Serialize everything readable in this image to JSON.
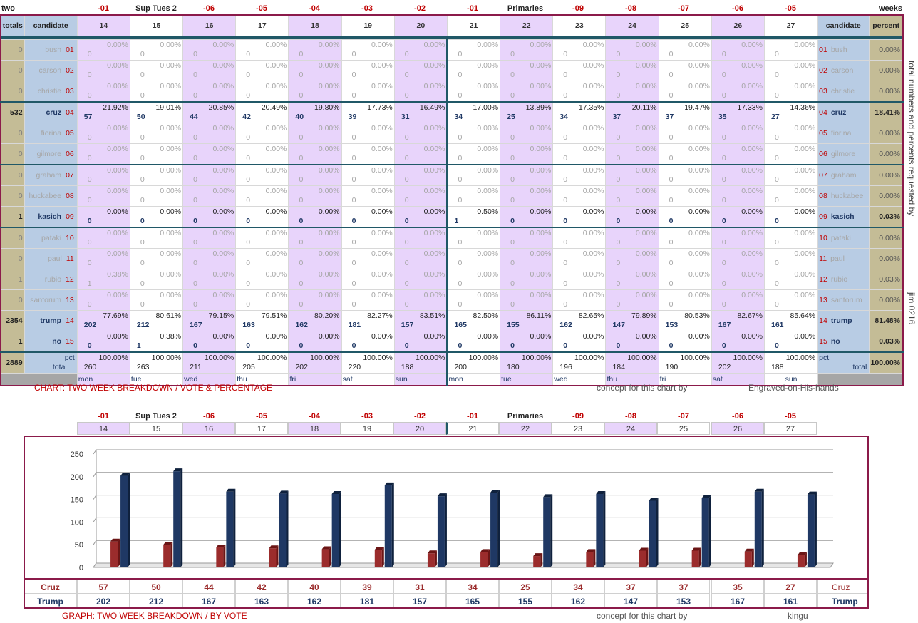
{
  "top": {
    "corner_left": "two",
    "corner_right": "weeks",
    "row_labels_top": [
      "-01",
      "Sup Tues 2",
      "-06",
      "-05",
      "-04",
      "-03",
      "-02",
      "-01",
      "Primaries",
      "-09",
      "-08",
      "-07",
      "-06",
      "-05"
    ],
    "header": {
      "totals": "totals",
      "candidate": "candidate",
      "percent": "percent"
    },
    "days": [
      "14",
      "15",
      "16",
      "17",
      "18",
      "19",
      "20",
      "21",
      "22",
      "23",
      "24",
      "25",
      "26",
      "27"
    ],
    "weekdays": [
      "mon",
      "tue",
      "wed",
      "thu",
      "fri",
      "sat",
      "sun",
      "mon",
      "tue",
      "wed",
      "thu",
      "fri",
      "sat",
      "sun"
    ],
    "candidates": [
      {
        "name": "bush",
        "num": "01",
        "total": "0",
        "percent": "0.00%",
        "active": false,
        "vals": [
          "0",
          "0",
          "0",
          "0",
          "0",
          "0",
          "0",
          "0",
          "0",
          "0",
          "0",
          "0",
          "0",
          "0"
        ],
        "pcts": [
          "0.00%",
          "0.00%",
          "0.00%",
          "0.00%",
          "0.00%",
          "0.00%",
          "0.00%",
          "0.00%",
          "0.00%",
          "0.00%",
          "0.00%",
          "0.00%",
          "0.00%",
          "0.00%"
        ]
      },
      {
        "name": "carson",
        "num": "02",
        "total": "0",
        "percent": "0.00%",
        "active": false,
        "vals": [
          "0",
          "0",
          "0",
          "0",
          "0",
          "0",
          "0",
          "0",
          "0",
          "0",
          "0",
          "0",
          "0",
          "0"
        ],
        "pcts": [
          "0.00%",
          "0.00%",
          "0.00%",
          "0.00%",
          "0.00%",
          "0.00%",
          "0.00%",
          "0.00%",
          "0.00%",
          "0.00%",
          "0.00%",
          "0.00%",
          "0.00%",
          "0.00%"
        ]
      },
      {
        "name": "christie",
        "num": "03",
        "total": "0",
        "percent": "0.00%",
        "active": false,
        "vals": [
          "0",
          "0",
          "0",
          "0",
          "0",
          "0",
          "0",
          "0",
          "0",
          "0",
          "0",
          "0",
          "0",
          "0"
        ],
        "pcts": [
          "0.00%",
          "0.00%",
          "0.00%",
          "0.00%",
          "0.00%",
          "0.00%",
          "0.00%",
          "0.00%",
          "0.00%",
          "0.00%",
          "0.00%",
          "0.00%",
          "0.00%",
          "0.00%"
        ]
      },
      {
        "name": "cruz",
        "num": "04",
        "total": "532",
        "percent": "18.41%",
        "active": true,
        "vals": [
          "57",
          "50",
          "44",
          "42",
          "40",
          "39",
          "31",
          "34",
          "25",
          "34",
          "37",
          "37",
          "35",
          "27"
        ],
        "pcts": [
          "21.92%",
          "19.01%",
          "20.85%",
          "20.49%",
          "19.80%",
          "17.73%",
          "16.49%",
          "17.00%",
          "13.89%",
          "17.35%",
          "20.11%",
          "19.47%",
          "17.33%",
          "14.36%"
        ]
      },
      {
        "name": "fiorina",
        "num": "05",
        "total": "0",
        "percent": "0.00%",
        "active": false,
        "vals": [
          "0",
          "0",
          "0",
          "0",
          "0",
          "0",
          "0",
          "0",
          "0",
          "0",
          "0",
          "0",
          "0",
          "0"
        ],
        "pcts": [
          "0.00%",
          "0.00%",
          "0.00%",
          "0.00%",
          "0.00%",
          "0.00%",
          "0.00%",
          "0.00%",
          "0.00%",
          "0.00%",
          "0.00%",
          "0.00%",
          "0.00%",
          "0.00%"
        ]
      },
      {
        "name": "gilmore",
        "num": "06",
        "total": "0",
        "percent": "0.00%",
        "active": false,
        "vals": [
          "0",
          "0",
          "0",
          "0",
          "0",
          "0",
          "0",
          "0",
          "0",
          "0",
          "0",
          "0",
          "0",
          "0"
        ],
        "pcts": [
          "0.00%",
          "0.00%",
          "0.00%",
          "0.00%",
          "0.00%",
          "0.00%",
          "0.00%",
          "0.00%",
          "0.00%",
          "0.00%",
          "0.00%",
          "0.00%",
          "0.00%",
          "0.00%"
        ]
      },
      {
        "name": "graham",
        "num": "07",
        "total": "0",
        "percent": "0.00%",
        "active": false,
        "vals": [
          "0",
          "0",
          "0",
          "0",
          "0",
          "0",
          "0",
          "0",
          "0",
          "0",
          "0",
          "0",
          "0",
          "0"
        ],
        "pcts": [
          "0.00%",
          "0.00%",
          "0.00%",
          "0.00%",
          "0.00%",
          "0.00%",
          "0.00%",
          "0.00%",
          "0.00%",
          "0.00%",
          "0.00%",
          "0.00%",
          "0.00%",
          "0.00%"
        ]
      },
      {
        "name": "huckabee",
        "num": "08",
        "total": "0",
        "percent": "0.00%",
        "active": false,
        "vals": [
          "0",
          "0",
          "0",
          "0",
          "0",
          "0",
          "0",
          "0",
          "0",
          "0",
          "0",
          "0",
          "0",
          "0"
        ],
        "pcts": [
          "0.00%",
          "0.00%",
          "0.00%",
          "0.00%",
          "0.00%",
          "0.00%",
          "0.00%",
          "0.00%",
          "0.00%",
          "0.00%",
          "0.00%",
          "0.00%",
          "0.00%",
          "0.00%"
        ]
      },
      {
        "name": "kasich",
        "num": "09",
        "total": "1",
        "percent": "0.03%",
        "active": true,
        "vals": [
          "0",
          "0",
          "0",
          "0",
          "0",
          "0",
          "0",
          "1",
          "0",
          "0",
          "0",
          "0",
          "0",
          "0"
        ],
        "pcts": [
          "0.00%",
          "0.00%",
          "0.00%",
          "0.00%",
          "0.00%",
          "0.00%",
          "0.00%",
          "0.50%",
          "0.00%",
          "0.00%",
          "0.00%",
          "0.00%",
          "0.00%",
          "0.00%"
        ]
      },
      {
        "name": "pataki",
        "num": "10",
        "total": "0",
        "percent": "0.00%",
        "active": false,
        "vals": [
          "0",
          "0",
          "0",
          "0",
          "0",
          "0",
          "0",
          "0",
          "0",
          "0",
          "0",
          "0",
          "0",
          "0"
        ],
        "pcts": [
          "0.00%",
          "0.00%",
          "0.00%",
          "0.00%",
          "0.00%",
          "0.00%",
          "0.00%",
          "0.00%",
          "0.00%",
          "0.00%",
          "0.00%",
          "0.00%",
          "0.00%",
          "0.00%"
        ]
      },
      {
        "name": "paul",
        "num": "11",
        "total": "0",
        "percent": "0.00%",
        "active": false,
        "vals": [
          "0",
          "0",
          "0",
          "0",
          "0",
          "0",
          "0",
          "0",
          "0",
          "0",
          "0",
          "0",
          "0",
          "0"
        ],
        "pcts": [
          "0.00%",
          "0.00%",
          "0.00%",
          "0.00%",
          "0.00%",
          "0.00%",
          "0.00%",
          "0.00%",
          "0.00%",
          "0.00%",
          "0.00%",
          "0.00%",
          "0.00%",
          "0.00%"
        ]
      },
      {
        "name": "rubio",
        "num": "12",
        "total": "1",
        "percent": "0.03%",
        "active": false,
        "vals": [
          "1",
          "0",
          "0",
          "0",
          "0",
          "0",
          "0",
          "0",
          "0",
          "0",
          "0",
          "0",
          "0",
          "0"
        ],
        "pcts": [
          "0.38%",
          "0.00%",
          "0.00%",
          "0.00%",
          "0.00%",
          "0.00%",
          "0.00%",
          "0.00%",
          "0.00%",
          "0.00%",
          "0.00%",
          "0.00%",
          "0.00%",
          "0.00%"
        ]
      },
      {
        "name": "santorum",
        "num": "13",
        "total": "0",
        "percent": "0.00%",
        "active": false,
        "vals": [
          "0",
          "0",
          "0",
          "0",
          "0",
          "0",
          "0",
          "0",
          "0",
          "0",
          "0",
          "0",
          "0",
          "0"
        ],
        "pcts": [
          "0.00%",
          "0.00%",
          "0.00%",
          "0.00%",
          "0.00%",
          "0.00%",
          "0.00%",
          "0.00%",
          "0.00%",
          "0.00%",
          "0.00%",
          "0.00%",
          "0.00%",
          "0.00%"
        ]
      },
      {
        "name": "trump",
        "num": "14",
        "total": "2354",
        "percent": "81.48%",
        "active": true,
        "vals": [
          "202",
          "212",
          "167",
          "163",
          "162",
          "181",
          "157",
          "165",
          "155",
          "162",
          "147",
          "153",
          "167",
          "161"
        ],
        "pcts": [
          "77.69%",
          "80.61%",
          "79.15%",
          "79.51%",
          "80.20%",
          "82.27%",
          "83.51%",
          "82.50%",
          "86.11%",
          "82.65%",
          "79.89%",
          "80.53%",
          "82.67%",
          "85.64%"
        ]
      },
      {
        "name": "no",
        "num": "15",
        "total": "1",
        "percent": "0.03%",
        "active": true,
        "vals": [
          "0",
          "1",
          "0",
          "0",
          "0",
          "0",
          "0",
          "0",
          "0",
          "0",
          "0",
          "0",
          "0",
          "0"
        ],
        "pcts": [
          "0.00%",
          "0.38%",
          "0.00%",
          "0.00%",
          "0.00%",
          "0.00%",
          "0.00%",
          "0.00%",
          "0.00%",
          "0.00%",
          "0.00%",
          "0.00%",
          "0.00%",
          "0.00%"
        ]
      }
    ],
    "total_row": {
      "total": "2889",
      "label": "total",
      "pct_label": "pct",
      "percent": "100.00%",
      "vals": [
        "260",
        "263",
        "211",
        "205",
        "202",
        "220",
        "188",
        "200",
        "180",
        "196",
        "184",
        "190",
        "202",
        "188"
      ],
      "pct": "100.00%"
    },
    "caption": "CHART: TWO WEEK BREAKDOWN / VOTE & PERCENTAGE",
    "concept": "concept for this chart by",
    "author": "Engraved-on-His-hands",
    "side_label": "total numbers and percents requested by",
    "side_sig": "jim 0216"
  },
  "bottom": {
    "caption": "GRAPH: TWO WEEK BREAKDOWN / BY VOTE",
    "concept": "concept for this chart by",
    "author": "kingu",
    "cruz_label": "Cruz",
    "trump_label": "Trump"
  },
  "chart_data": {
    "type": "bar",
    "categories": [
      "14",
      "15",
      "16",
      "17",
      "18",
      "19",
      "20",
      "21",
      "22",
      "23",
      "24",
      "25",
      "26",
      "27"
    ],
    "series": [
      {
        "name": "Cruz",
        "values": [
          57,
          50,
          44,
          42,
          40,
          39,
          31,
          34,
          25,
          34,
          37,
          37,
          35,
          27
        ]
      },
      {
        "name": "Trump",
        "values": [
          202,
          212,
          167,
          163,
          162,
          181,
          157,
          165,
          155,
          162,
          147,
          153,
          167,
          161
        ]
      }
    ],
    "title": "GRAPH: TWO WEEK BREAKDOWN / BY VOTE",
    "xlabel": "",
    "ylabel": "",
    "ylim": [
      0,
      250
    ],
    "yticks": [
      "0",
      "50",
      "100",
      "150",
      "200",
      "250"
    ],
    "colors": {
      "Cruz": "#9b2c2c",
      "Trump": "#1f3864"
    },
    "grid": true
  }
}
